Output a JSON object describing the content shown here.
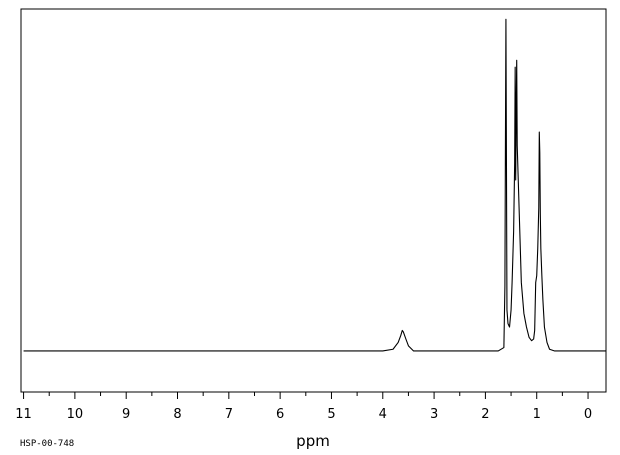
{
  "chart_data": {
    "type": "line",
    "xlabel": "ppm",
    "xlim": [
      11.05,
      -0.35
    ],
    "x_reversed": true,
    "ylim": [
      -0.12,
      1.0
    ],
    "grid": false,
    "legend": "none",
    "x_ticks": [
      "11",
      "10",
      "9",
      "8",
      "7",
      "6",
      "5",
      "4",
      "3",
      "2",
      "1",
      "0"
    ],
    "spectrum_code": "HSP-00-748",
    "series": [
      {
        "x": [
          11.0,
          4.0,
          3.8,
          3.7,
          3.65,
          3.62,
          3.6,
          3.55,
          3.5,
          3.4,
          3.0,
          1.75,
          1.64,
          1.62,
          1.61,
          1.6,
          1.59,
          1.58,
          1.56,
          1.53,
          1.5,
          1.48,
          1.45,
          1.43,
          1.42,
          1.41,
          1.4,
          1.39,
          1.38,
          1.36,
          1.33,
          1.3,
          1.25,
          1.2,
          1.15,
          1.1,
          1.06,
          1.04,
          1.02,
          1.0,
          0.98,
          0.96,
          0.95,
          0.94,
          0.93,
          0.92,
          0.9,
          0.88,
          0.85,
          0.8,
          0.75,
          0.65,
          -0.35
        ],
        "y": [
          0.0,
          0.0,
          0.005,
          0.025,
          0.045,
          0.06,
          0.056,
          0.035,
          0.015,
          0.0,
          0.0,
          0.0,
          0.01,
          0.19,
          0.6,
          0.97,
          0.55,
          0.12,
          0.08,
          0.07,
          0.12,
          0.2,
          0.35,
          0.55,
          0.83,
          0.5,
          0.7,
          0.85,
          0.6,
          0.5,
          0.35,
          0.2,
          0.11,
          0.07,
          0.04,
          0.03,
          0.035,
          0.06,
          0.2,
          0.22,
          0.3,
          0.42,
          0.64,
          0.58,
          0.4,
          0.3,
          0.22,
          0.15,
          0.07,
          0.025,
          0.005,
          0.0,
          0.0
        ]
      }
    ]
  }
}
